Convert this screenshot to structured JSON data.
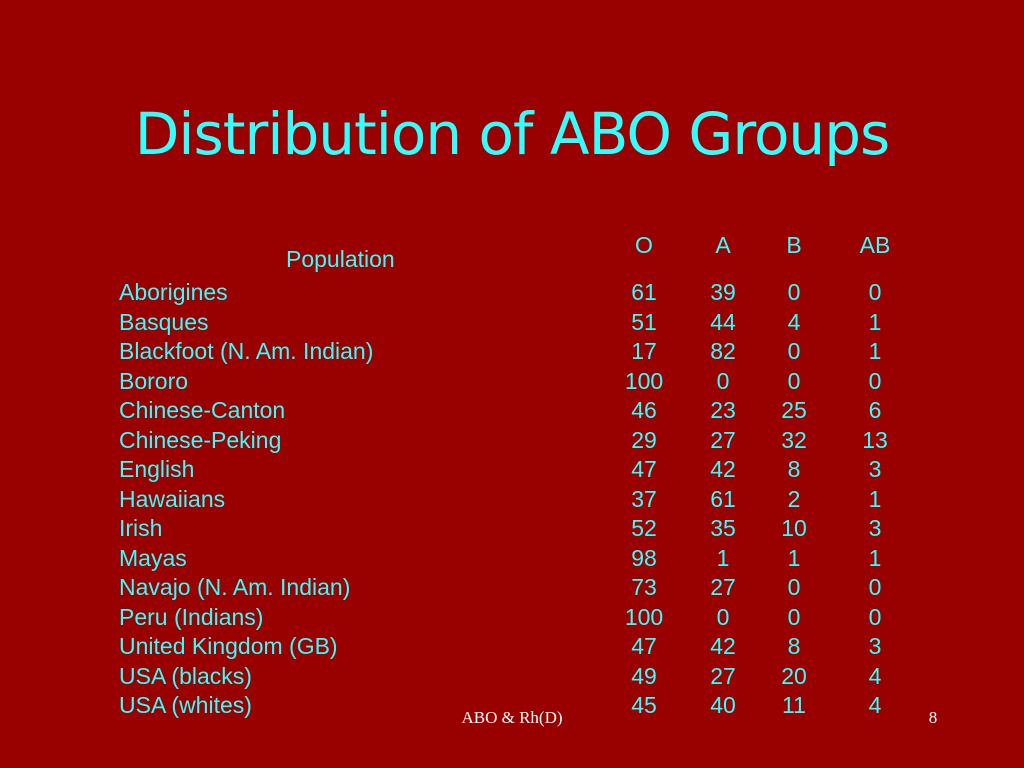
{
  "slide": {
    "title": "Distribution of ABO Groups",
    "footer": "ABO & Rh(D)",
    "page_number": "8"
  },
  "table": {
    "population_header": "Population",
    "columns": [
      "O",
      "A",
      "B",
      "AB"
    ],
    "rows": [
      {
        "name": "Aborigines",
        "o": "61",
        "a": "39",
        "b": "0",
        "ab": "0"
      },
      {
        "name": "Basques",
        "o": "51",
        "a": "44",
        "b": "4",
        "ab": "1"
      },
      {
        "name": "Blackfoot (N. Am. Indian)",
        "o": "17",
        "a": "82",
        "b": "0",
        "ab": "1"
      },
      {
        "name": "Bororo",
        "o": "100",
        "a": "0",
        "b": "0",
        "ab": "0"
      },
      {
        "name": "Chinese-Canton",
        "o": "46",
        "a": "23",
        "b": "25",
        "ab": "6"
      },
      {
        "name": "Chinese-Peking",
        "o": "29",
        "a": "27",
        "b": "32",
        "ab": "13"
      },
      {
        "name": "English",
        "o": "47",
        "a": "42",
        "b": "8",
        "ab": "3"
      },
      {
        "name": "Hawaiians",
        "o": "37",
        "a": "61",
        "b": "2",
        "ab": "1"
      },
      {
        "name": "Irish",
        "o": "52",
        "a": "35",
        "b": "10",
        "ab": "3"
      },
      {
        "name": "Mayas",
        "o": "98",
        "a": "1",
        "b": "1",
        "ab": "1"
      },
      {
        "name": "Navajo (N. Am. Indian)",
        "o": "73",
        "a": "27",
        "b": "0",
        "ab": "0"
      },
      {
        "name": "Peru (Indians)",
        "o": "100",
        "a": "0",
        "b": "0",
        "ab": "0"
      },
      {
        "name": "United Kingdom (GB)",
        "o": "47",
        "a": "42",
        "b": "8",
        "ab": "3"
      },
      {
        "name": "USA (blacks)",
        "o": "49",
        "a": "27",
        "b": "20",
        "ab": "4"
      },
      {
        "name": "USA (whites)",
        "o": "45",
        "a": "40",
        "b": "11",
        "ab": "4"
      }
    ]
  }
}
